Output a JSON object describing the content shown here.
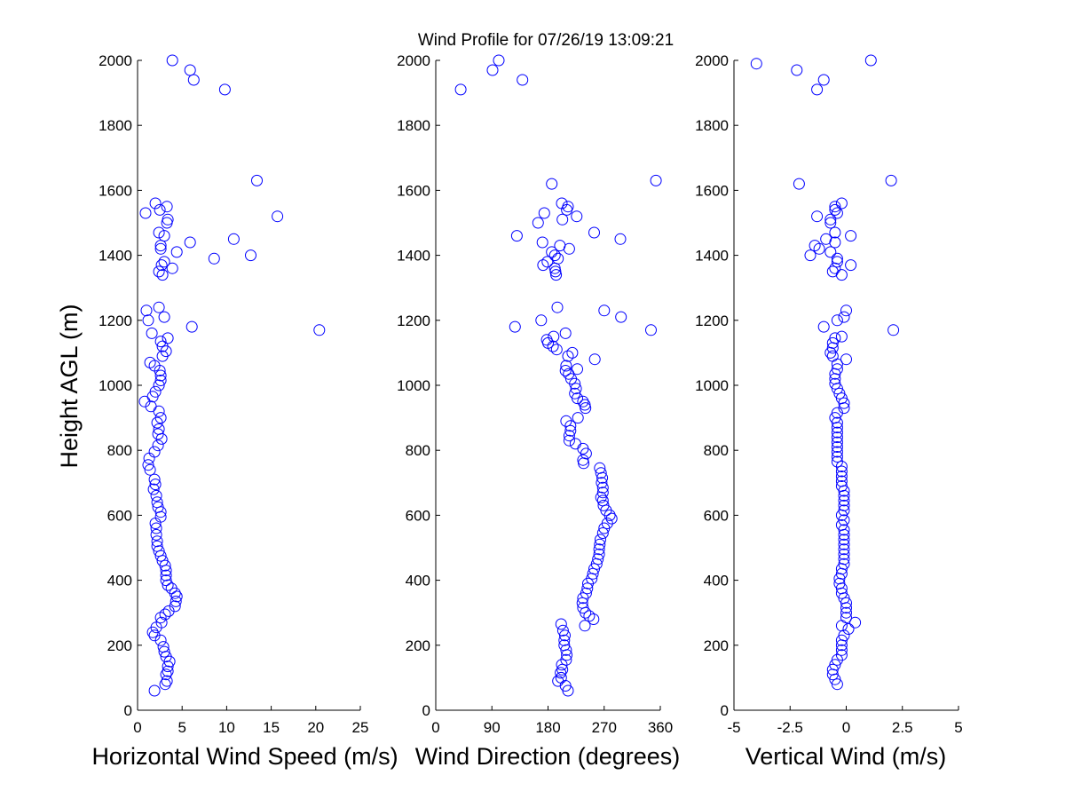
{
  "title": "Wind Profile for  07/26/19 13:09:21",
  "ylabel": "Height AGL (m)",
  "colors": {
    "marker": "#0000ff",
    "axis": "#000000",
    "background": "#ffffff"
  },
  "chart_data": [
    {
      "type": "scatter",
      "xlabel": "Horizontal Wind Speed (m/s)",
      "xlim": [
        0,
        25
      ],
      "ylim": [
        0,
        2000
      ],
      "xticks": [
        0,
        5,
        10,
        15,
        20,
        25
      ],
      "xtick_labels": [
        "0",
        "5",
        "10",
        "15",
        "20",
        "25"
      ],
      "yticks": [
        0,
        200,
        400,
        600,
        800,
        1000,
        1200,
        1400,
        1600,
        1800,
        2000
      ],
      "ytick_labels": [
        "0",
        "200",
        "400",
        "600",
        "800",
        "1000",
        "1200",
        "1400",
        "1600",
        "1800",
        "2000"
      ],
      "marker": "open-circle",
      "points": [
        [
          1.9,
          60
        ],
        [
          3.1,
          80
        ],
        [
          3.3,
          90
        ],
        [
          3.2,
          110
        ],
        [
          3.4,
          120
        ],
        [
          3.4,
          135
        ],
        [
          3.6,
          150
        ],
        [
          3.2,
          165
        ],
        [
          3.0,
          180
        ],
        [
          2.9,
          195
        ],
        [
          2.6,
          215
        ],
        [
          1.9,
          230
        ],
        [
          1.7,
          240
        ],
        [
          2.1,
          255
        ],
        [
          2.7,
          270
        ],
        [
          2.6,
          285
        ],
        [
          3.1,
          295
        ],
        [
          3.5,
          305
        ],
        [
          4.2,
          320
        ],
        [
          4.3,
          335
        ],
        [
          4.4,
          350
        ],
        [
          4.2,
          360
        ],
        [
          3.8,
          375
        ],
        [
          3.4,
          385
        ],
        [
          3.2,
          400
        ],
        [
          3.2,
          415
        ],
        [
          3.2,
          430
        ],
        [
          3.1,
          445
        ],
        [
          2.8,
          460
        ],
        [
          2.6,
          475
        ],
        [
          2.4,
          490
        ],
        [
          2.2,
          505
        ],
        [
          2.2,
          520
        ],
        [
          2.1,
          540
        ],
        [
          2.1,
          560
        ],
        [
          2.0,
          575
        ],
        [
          2.6,
          595
        ],
        [
          2.6,
          610
        ],
        [
          2.3,
          625
        ],
        [
          2.2,
          640
        ],
        [
          2.1,
          660
        ],
        [
          1.8,
          680
        ],
        [
          2.0,
          695
        ],
        [
          1.9,
          710
        ],
        [
          1.4,
          740
        ],
        [
          1.2,
          755
        ],
        [
          1.3,
          775
        ],
        [
          1.9,
          795
        ],
        [
          2.3,
          815
        ],
        [
          2.7,
          835
        ],
        [
          2.3,
          850
        ],
        [
          2.4,
          865
        ],
        [
          2.2,
          885
        ],
        [
          2.6,
          900
        ],
        [
          2.4,
          920
        ],
        [
          1.5,
          935
        ],
        [
          0.8,
          950
        ],
        [
          1.7,
          965
        ],
        [
          2.0,
          980
        ],
        [
          2.4,
          1000
        ],
        [
          2.6,
          1015
        ],
        [
          2.6,
          1030
        ],
        [
          2.5,
          1045
        ],
        [
          1.9,
          1060
        ],
        [
          1.4,
          1070
        ],
        [
          2.8,
          1090
        ],
        [
          3.2,
          1105
        ],
        [
          2.8,
          1120
        ],
        [
          2.6,
          1135
        ],
        [
          3.4,
          1145
        ],
        [
          1.6,
          1160
        ],
        [
          20.4,
          1170
        ],
        [
          6.1,
          1180
        ],
        [
          1.2,
          1200
        ],
        [
          3.0,
          1210
        ],
        [
          1.0,
          1230
        ],
        [
          2.4,
          1240
        ],
        [
          2.8,
          1340
        ],
        [
          2.4,
          1350
        ],
        [
          3.9,
          1360
        ],
        [
          2.7,
          1370
        ],
        [
          3.0,
          1380
        ],
        [
          8.6,
          1390
        ],
        [
          12.7,
          1400
        ],
        [
          4.4,
          1410
        ],
        [
          2.6,
          1420
        ],
        [
          2.6,
          1430
        ],
        [
          5.9,
          1440
        ],
        [
          10.8,
          1450
        ],
        [
          3.0,
          1460
        ],
        [
          2.4,
          1470
        ],
        [
          3.3,
          1500
        ],
        [
          3.4,
          1510
        ],
        [
          15.7,
          1520
        ],
        [
          0.9,
          1530
        ],
        [
          2.5,
          1540
        ],
        [
          3.3,
          1550
        ],
        [
          2.0,
          1560
        ],
        [
          13.4,
          1630
        ],
        [
          9.8,
          1910
        ],
        [
          6.3,
          1940
        ],
        [
          5.9,
          1970
        ],
        [
          3.9,
          2000
        ]
      ]
    },
    {
      "type": "scatter",
      "xlabel": "Wind Direction (degrees)",
      "xlim": [
        0,
        360
      ],
      "ylim": [
        0,
        2000
      ],
      "xticks": [
        0,
        90,
        180,
        270,
        360
      ],
      "xtick_labels": [
        "0",
        "90",
        "180",
        "270",
        "360"
      ],
      "yticks": [
        0,
        200,
        400,
        600,
        800,
        1000,
        1200,
        1400,
        1600,
        1800,
        2000
      ],
      "ytick_labels": [
        "0",
        "200",
        "400",
        "600",
        "800",
        "1000",
        "1200",
        "1400",
        "1600",
        "1800",
        "2000"
      ],
      "marker": "open-circle",
      "points": [
        [
          212,
          60
        ],
        [
          208,
          75
        ],
        [
          196,
          90
        ],
        [
          201,
          100
        ],
        [
          200,
          115
        ],
        [
          203,
          125
        ],
        [
          202,
          140
        ],
        [
          209,
          155
        ],
        [
          210,
          170
        ],
        [
          209,
          185
        ],
        [
          206,
          200
        ],
        [
          206,
          215
        ],
        [
          207,
          230
        ],
        [
          204,
          245
        ],
        [
          201,
          265
        ],
        [
          239,
          260
        ],
        [
          253,
          280
        ],
        [
          246,
          290
        ],
        [
          240,
          300
        ],
        [
          236,
          315
        ],
        [
          235,
          330
        ],
        [
          236,
          345
        ],
        [
          241,
          360
        ],
        [
          243,
          375
        ],
        [
          244,
          390
        ],
        [
          250,
          405
        ],
        [
          252,
          420
        ],
        [
          254,
          435
        ],
        [
          258,
          450
        ],
        [
          260,
          465
        ],
        [
          262,
          480
        ],
        [
          262,
          495
        ],
        [
          263,
          510
        ],
        [
          264,
          525
        ],
        [
          268,
          545
        ],
        [
          270,
          560
        ],
        [
          275,
          575
        ],
        [
          282,
          590
        ],
        [
          279,
          600
        ],
        [
          273,
          615
        ],
        [
          269,
          630
        ],
        [
          268,
          645
        ],
        [
          265,
          655
        ],
        [
          268,
          670
        ],
        [
          268,
          685
        ],
        [
          266,
          700
        ],
        [
          267,
          715
        ],
        [
          265,
          730
        ],
        [
          263,
          745
        ],
        [
          237,
          760
        ],
        [
          236,
          770
        ],
        [
          241,
          790
        ],
        [
          236,
          805
        ],
        [
          224,
          820
        ],
        [
          214,
          830
        ],
        [
          214,
          845
        ],
        [
          216,
          860
        ],
        [
          216,
          875
        ],
        [
          209,
          890
        ],
        [
          228,
          900
        ],
        [
          240,
          930
        ],
        [
          239,
          940
        ],
        [
          236,
          950
        ],
        [
          227,
          960
        ],
        [
          223,
          975
        ],
        [
          225,
          990
        ],
        [
          223,
          1005
        ],
        [
          217,
          1020
        ],
        [
          213,
          1035
        ],
        [
          208,
          1045
        ],
        [
          227,
          1050
        ],
        [
          209,
          1060
        ],
        [
          255,
          1080
        ],
        [
          212,
          1090
        ],
        [
          219,
          1100
        ],
        [
          194,
          1110
        ],
        [
          188,
          1120
        ],
        [
          180,
          1130
        ],
        [
          178,
          1140
        ],
        [
          189,
          1150
        ],
        [
          208,
          1160
        ],
        [
          345,
          1170
        ],
        [
          127,
          1180
        ],
        [
          169,
          1200
        ],
        [
          297,
          1210
        ],
        [
          270,
          1230
        ],
        [
          195,
          1240
        ],
        [
          193,
          1340
        ],
        [
          192,
          1350
        ],
        [
          191,
          1360
        ],
        [
          172,
          1370
        ],
        [
          179,
          1380
        ],
        [
          196,
          1390
        ],
        [
          191,
          1400
        ],
        [
          186,
          1410
        ],
        [
          214,
          1420
        ],
        [
          199,
          1430
        ],
        [
          171,
          1440
        ],
        [
          296,
          1450
        ],
        [
          130,
          1460
        ],
        [
          254,
          1470
        ],
        [
          164,
          1500
        ],
        [
          203,
          1510
        ],
        [
          226,
          1520
        ],
        [
          174,
          1530
        ],
        [
          210,
          1540
        ],
        [
          212,
          1550
        ],
        [
          202,
          1560
        ],
        [
          186,
          1620
        ],
        [
          353,
          1630
        ],
        [
          40,
          1910
        ],
        [
          139,
          1940
        ],
        [
          91,
          1970
        ],
        [
          101,
          2000
        ]
      ]
    },
    {
      "type": "scatter",
      "xlabel": "Vertical Wind (m/s)",
      "xlim": [
        -5,
        5
      ],
      "ylim": [
        0,
        2000
      ],
      "xticks": [
        -5,
        -2.5,
        0,
        2.5,
        5
      ],
      "xtick_labels": [
        "-5",
        "-2.5",
        "0",
        "2.5",
        "5"
      ],
      "yticks": [
        0,
        200,
        400,
        600,
        800,
        1000,
        1200,
        1400,
        1600,
        1800,
        2000
      ],
      "ytick_labels": [
        "0",
        "200",
        "400",
        "600",
        "800",
        "1000",
        "1200",
        "1400",
        "1600",
        "1800",
        "2000"
      ],
      "marker": "open-circle",
      "points": [
        [
          -0.4,
          80
        ],
        [
          -0.5,
          95
        ],
        [
          -0.6,
          110
        ],
        [
          -0.6,
          125
        ],
        [
          -0.5,
          140
        ],
        [
          -0.4,
          155
        ],
        [
          -0.2,
          170
        ],
        [
          -0.2,
          185
        ],
        [
          -0.2,
          200
        ],
        [
          -0.2,
          215
        ],
        [
          -0.1,
          230
        ],
        [
          0.1,
          250
        ],
        [
          -0.2,
          260
        ],
        [
          0.4,
          270
        ],
        [
          0.0,
          285
        ],
        [
          0.0,
          300
        ],
        [
          0.0,
          315
        ],
        [
          0.0,
          330
        ],
        [
          -0.1,
          345
        ],
        [
          -0.2,
          360
        ],
        [
          -0.2,
          375
        ],
        [
          -0.3,
          390
        ],
        [
          -0.3,
          405
        ],
        [
          -0.2,
          420
        ],
        [
          -0.2,
          435
        ],
        [
          -0.1,
          450
        ],
        [
          -0.1,
          465
        ],
        [
          -0.1,
          480
        ],
        [
          -0.1,
          495
        ],
        [
          -0.1,
          510
        ],
        [
          -0.1,
          525
        ],
        [
          -0.1,
          540
        ],
        [
          -0.1,
          555
        ],
        [
          -0.2,
          570
        ],
        [
          -0.1,
          585
        ],
        [
          -0.2,
          600
        ],
        [
          -0.1,
          615
        ],
        [
          -0.1,
          630
        ],
        [
          -0.1,
          645
        ],
        [
          -0.1,
          660
        ],
        [
          -0.1,
          675
        ],
        [
          -0.2,
          690
        ],
        [
          -0.2,
          705
        ],
        [
          -0.2,
          720
        ],
        [
          -0.2,
          735
        ],
        [
          -0.2,
          750
        ],
        [
          -0.4,
          765
        ],
        [
          -0.4,
          780
        ],
        [
          -0.4,
          795
        ],
        [
          -0.4,
          810
        ],
        [
          -0.4,
          825
        ],
        [
          -0.4,
          840
        ],
        [
          -0.4,
          855
        ],
        [
          -0.4,
          870
        ],
        [
          -0.4,
          885
        ],
        [
          -0.5,
          900
        ],
        [
          -0.4,
          915
        ],
        [
          -0.1,
          930
        ],
        [
          -0.1,
          945
        ],
        [
          -0.2,
          960
        ],
        [
          -0.3,
          975
        ],
        [
          -0.4,
          990
        ],
        [
          -0.5,
          1005
        ],
        [
          -0.5,
          1020
        ],
        [
          -0.5,
          1035
        ],
        [
          -0.4,
          1050
        ],
        [
          -0.4,
          1065
        ],
        [
          0.0,
          1080
        ],
        [
          -0.6,
          1090
        ],
        [
          -0.7,
          1100
        ],
        [
          -0.6,
          1115
        ],
        [
          -0.6,
          1130
        ],
        [
          -0.5,
          1145
        ],
        [
          -0.2,
          1150
        ],
        [
          -1.0,
          1180
        ],
        [
          2.1,
          1170
        ],
        [
          -0.4,
          1200
        ],
        [
          -0.1,
          1210
        ],
        [
          0.0,
          1230
        ],
        [
          -0.2,
          1340
        ],
        [
          -0.6,
          1350
        ],
        [
          -0.5,
          1360
        ],
        [
          0.2,
          1370
        ],
        [
          -0.4,
          1380
        ],
        [
          -0.4,
          1390
        ],
        [
          -1.6,
          1400
        ],
        [
          -0.7,
          1410
        ],
        [
          -1.2,
          1420
        ],
        [
          -1.4,
          1430
        ],
        [
          -0.5,
          1440
        ],
        [
          -0.9,
          1450
        ],
        [
          0.2,
          1460
        ],
        [
          -0.5,
          1470
        ],
        [
          -0.7,
          1500
        ],
        [
          -0.7,
          1510
        ],
        [
          -1.3,
          1520
        ],
        [
          -0.4,
          1530
        ],
        [
          -0.5,
          1540
        ],
        [
          -0.5,
          1550
        ],
        [
          -0.2,
          1560
        ],
        [
          -2.1,
          1620
        ],
        [
          2.0,
          1630
        ],
        [
          -1.3,
          1910
        ],
        [
          -1.0,
          1940
        ],
        [
          -2.2,
          1970
        ],
        [
          -4.0,
          1990
        ],
        [
          1.1,
          2000
        ]
      ]
    }
  ]
}
